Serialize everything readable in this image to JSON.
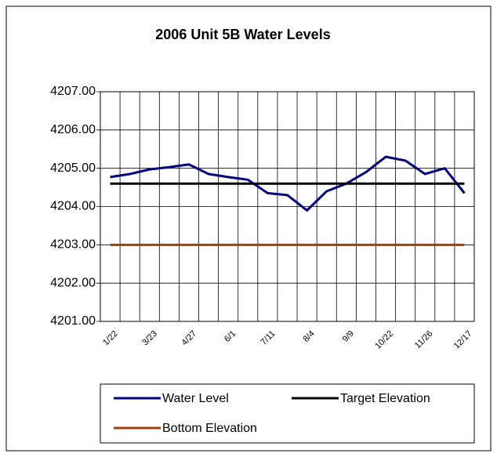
{
  "chart_data": {
    "type": "line",
    "title": "2006 Unit 5B Water Levels",
    "categories": [
      "1/22",
      null,
      "3/23",
      null,
      "4/27",
      null,
      "6/1",
      null,
      "7/11",
      null,
      "8/4",
      null,
      "9/9",
      null,
      "10/22",
      null,
      "11/26",
      null,
      "12/17"
    ],
    "series": [
      {
        "name": "Water Level",
        "color": "#000080",
        "values": [
          4204.77,
          4204.85,
          4204.97,
          4205.03,
          4205.1,
          4204.85,
          4204.77,
          4204.7,
          4204.35,
          4204.3,
          4203.9,
          4204.4,
          4204.6,
          4204.9,
          4205.3,
          4205.2,
          4204.85,
          4205.0,
          4204.35
        ]
      },
      {
        "name": "Target Elevation",
        "color": "#000000",
        "values": [
          4204.6,
          4204.6,
          4204.6,
          4204.6,
          4204.6,
          4204.6,
          4204.6,
          4204.6,
          4204.6,
          4204.6,
          4204.6,
          4204.6,
          4204.6,
          4204.6,
          4204.6,
          4204.6,
          4204.6,
          4204.6,
          4204.6
        ]
      },
      {
        "name": "Bottom Elevation",
        "color": "#a0400a",
        "values": [
          4203.0,
          4203.0,
          4203.0,
          4203.0,
          4203.0,
          4203.0,
          4203.0,
          4203.0,
          4203.0,
          4203.0,
          4203.0,
          4203.0,
          4203.0,
          4203.0,
          4203.0,
          4203.0,
          4203.0,
          4203.0,
          4203.0
        ]
      }
    ],
    "ylim": [
      4201,
      4207
    ],
    "yticks": [
      {
        "value": 4201,
        "label": "4201.00"
      },
      {
        "value": 4202,
        "label": "4202.00"
      },
      {
        "value": 4203,
        "label": "4203.00"
      },
      {
        "value": 4204,
        "label": "4204.00"
      },
      {
        "value": 4205,
        "label": "4205.00"
      },
      {
        "value": 4206,
        "label": "4206.00"
      },
      {
        "value": 4207,
        "label": "4207.00"
      }
    ],
    "grid": true,
    "legend": "bottom"
  }
}
